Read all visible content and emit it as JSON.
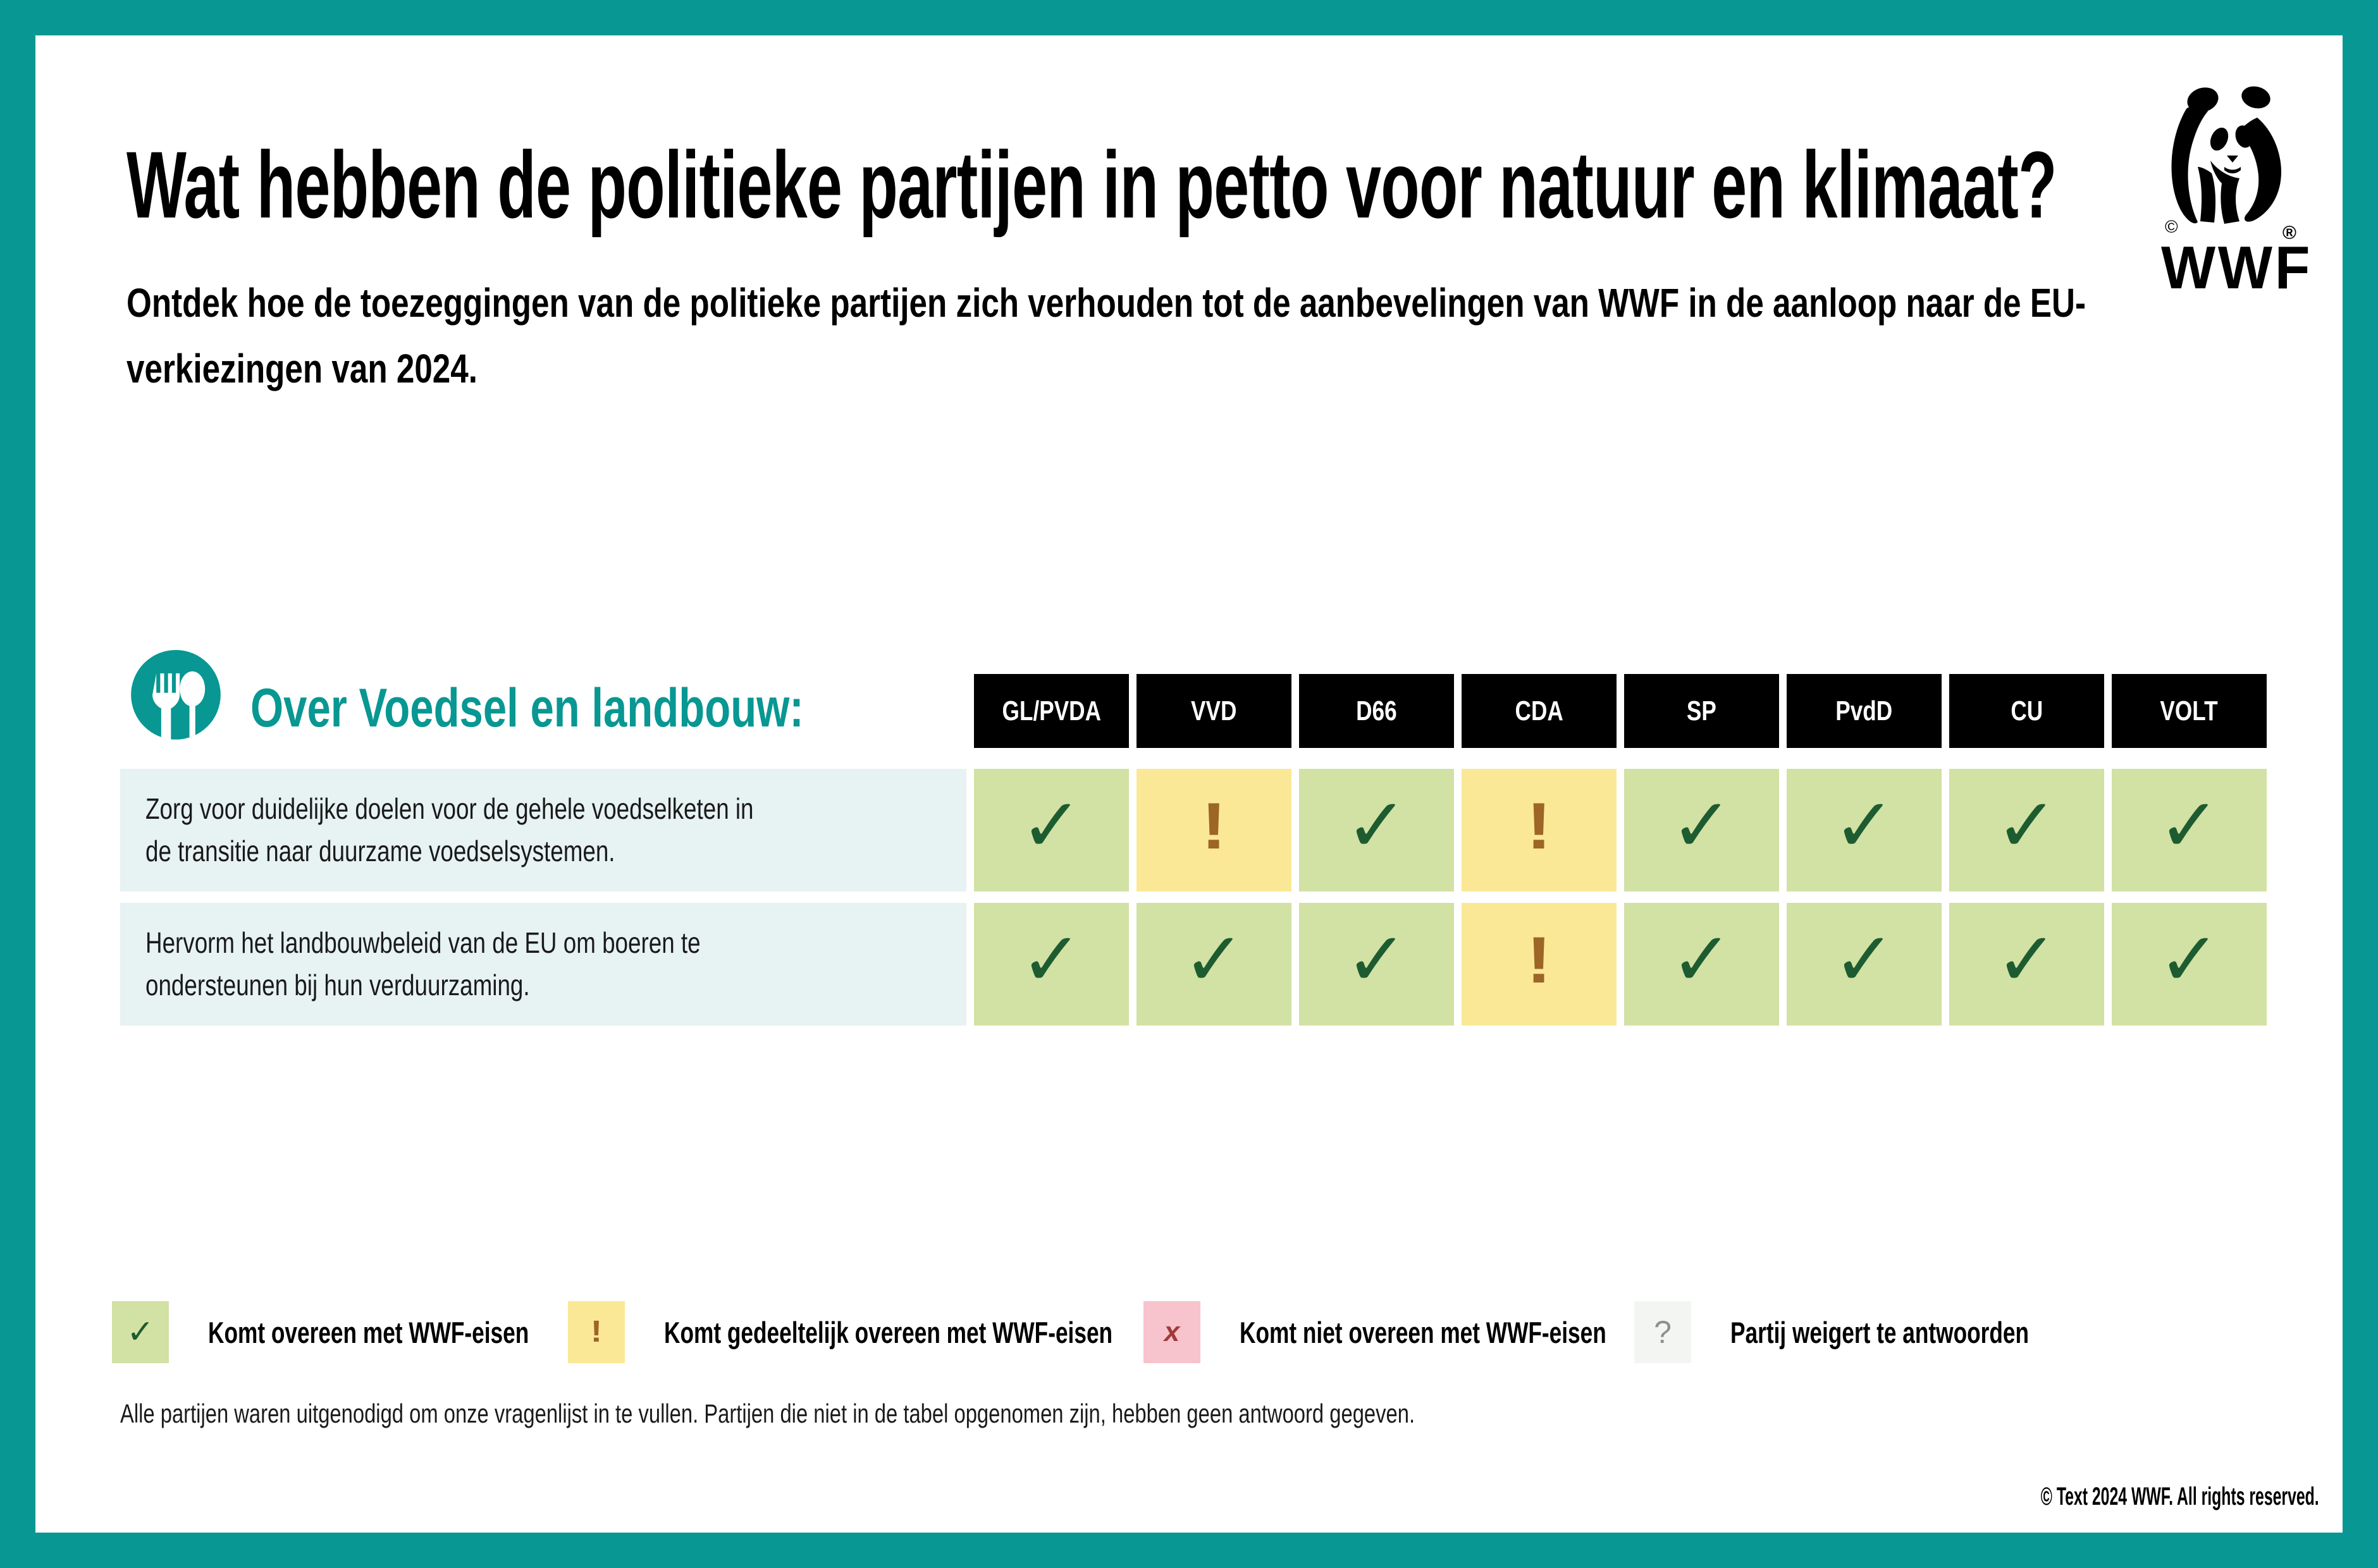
{
  "colors": {
    "accent": "#089792",
    "table_header_bg": "#000000",
    "row_label_bg": "#e7f2f2"
  },
  "header": {
    "title": "Wat hebben de politieke partijen in petto voor natuur en klimaat?",
    "subtitle": "Ontdek hoe de toezeggingen van de politieke partijen zich verhouden tot de aanbevelingen van WWF in de aanloop naar de EU-verkiezingen van 2024."
  },
  "logo": {
    "wordmark": "WWF",
    "registered_mark": "®",
    "copyright_mark": "©"
  },
  "chart_data": {
    "type": "table",
    "title": "Over Voedsel en landbouw:",
    "columns": [
      "GL/PVDA",
      "VVD",
      "D66",
      "CDA",
      "SP",
      "PvdD",
      "CU",
      "VOLT"
    ],
    "rows": [
      {
        "label": "Zorg voor duidelijke doelen voor de gehele voedselketen in de transitie naar duurzame voedselsystemen.",
        "answers": [
          "match",
          "partial",
          "match",
          "partial",
          "match",
          "match",
          "match",
          "match"
        ]
      },
      {
        "label": "Hervorm het landbouwbeleid van de EU om boeren te ondersteunen bij hun verduurzaming.",
        "answers": [
          "match",
          "match",
          "match",
          "partial",
          "match",
          "match",
          "match",
          "match"
        ]
      }
    ]
  },
  "legend": [
    {
      "key": "match",
      "symbol": "✓",
      "label": "Komt overeen met WWF-eisen",
      "swatch": "#d2e1a4",
      "symbol_color": "#1d5c30"
    },
    {
      "key": "partial",
      "symbol": "!",
      "label": "Komt gedeeltelijk overeen met WWF-eisen",
      "swatch": "#fae897",
      "symbol_color": "#9d6526"
    },
    {
      "key": "mismatch",
      "symbol": "x",
      "label": "Komt niet overeen met WWF-eisen",
      "swatch": "#f7c3cd",
      "symbol_color": "#a13b3b"
    },
    {
      "key": "no_answer",
      "symbol": "?",
      "label": "Partij weigert te antwoorden",
      "swatch": "#f3f5f3",
      "symbol_color": "#8f8f8f"
    }
  ],
  "footnote": "Alle partijen waren uitgenodigd om onze vragenlijst in te vullen. Partijen die niet in de tabel opgenomen zijn, hebben geen antwoord gegeven.",
  "copyright": "© Text 2024 WWF. All rights reserved."
}
